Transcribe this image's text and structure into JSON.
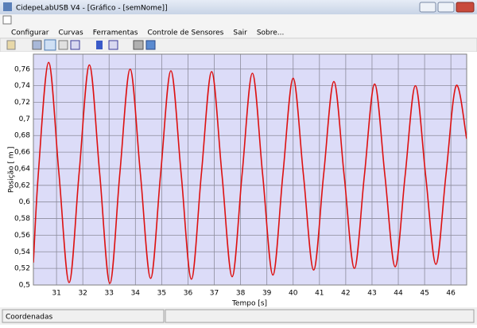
{
  "window": {
    "title": "CidepeLabUSB V4 - [Gráfico - [semNome]]"
  },
  "menu": [
    "Configurar",
    "Curvas",
    "Ferramentas",
    "Controle de Sensores",
    "Sair",
    "Sobre..."
  ],
  "status": {
    "text": "Coordenadas"
  },
  "chart_data": {
    "type": "line",
    "x_label": "Tempo [s]",
    "y_label": "Posição [ m ]",
    "x": [
      30.12,
      30.31,
      30.7,
      31.09,
      31.48,
      31.86,
      32.25,
      32.64,
      33.03,
      33.41,
      33.8,
      34.19,
      34.58,
      34.96,
      35.35,
      35.74,
      36.13,
      36.51,
      36.9,
      37.29,
      37.68,
      38.06,
      38.45,
      38.84,
      39.23,
      39.61,
      40.0,
      40.39,
      40.78,
      41.16,
      41.55,
      41.94,
      42.33,
      42.71,
      43.1,
      43.49,
      43.88,
      44.26,
      44.65,
      45.04,
      45.43,
      45.81,
      46.2,
      46.6
    ],
    "values": [
      0.527,
      0.635,
      0.768,
      0.635,
      0.503,
      0.635,
      0.765,
      0.635,
      0.502,
      0.635,
      0.76,
      0.634,
      0.508,
      0.634,
      0.758,
      0.634,
      0.507,
      0.634,
      0.757,
      0.634,
      0.51,
      0.634,
      0.755,
      0.633,
      0.512,
      0.633,
      0.749,
      0.633,
      0.518,
      0.633,
      0.745,
      0.632,
      0.52,
      0.632,
      0.742,
      0.632,
      0.522,
      0.632,
      0.74,
      0.632,
      0.525,
      0.632,
      0.74,
      0.676
    ],
    "color": "#dd1111",
    "xlim": [
      30.12,
      46.6
    ],
    "ylim": [
      0.5,
      0.778
    ],
    "xticks": [
      31,
      32,
      33,
      34,
      35,
      36,
      37,
      38,
      39,
      40,
      41,
      42,
      43,
      44,
      45,
      46
    ],
    "yticks": [
      {
        "value": 0.5,
        "label": "0,5"
      },
      {
        "value": 0.52,
        "label": "0,52"
      },
      {
        "value": 0.54,
        "label": "0,54"
      },
      {
        "value": 0.56,
        "label": "0,56"
      },
      {
        "value": 0.58,
        "label": "0,58"
      },
      {
        "value": 0.6,
        "label": "0,6"
      },
      {
        "value": 0.62,
        "label": "0,62"
      },
      {
        "value": 0.64,
        "label": "0,64"
      },
      {
        "value": 0.66,
        "label": "0,66"
      },
      {
        "value": 0.68,
        "label": "0,68"
      },
      {
        "value": 0.7,
        "label": "0,7"
      },
      {
        "value": 0.72,
        "label": "0,72"
      },
      {
        "value": 0.74,
        "label": "0,74"
      },
      {
        "value": 0.76,
        "label": "0,76"
      }
    ],
    "grid": true
  }
}
